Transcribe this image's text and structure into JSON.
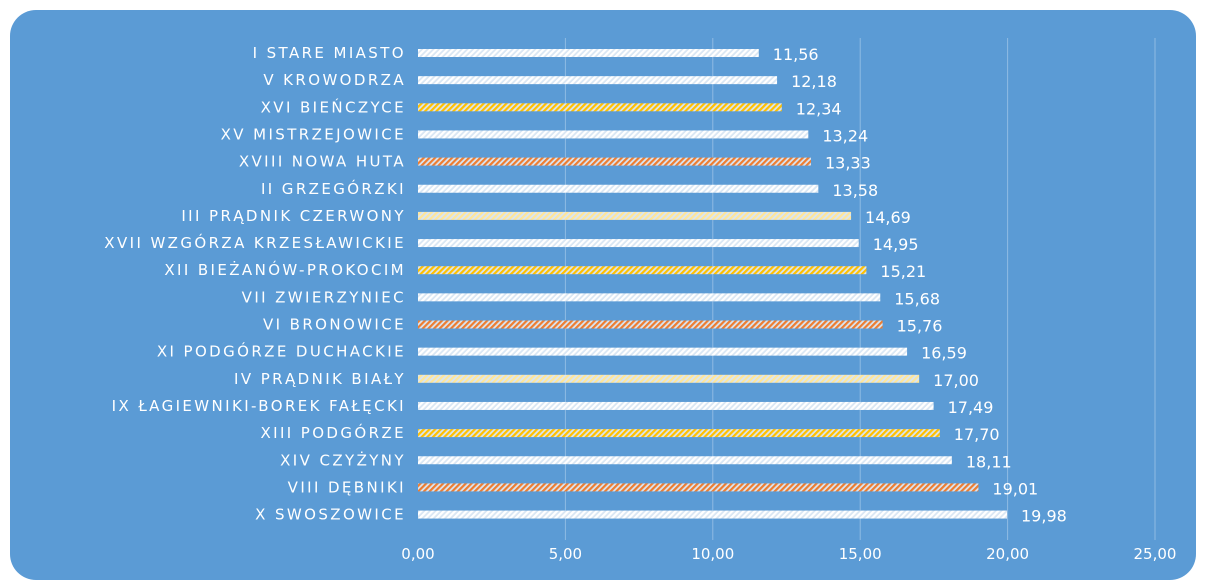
{
  "chart_data": {
    "type": "bar",
    "orientation": "horizontal",
    "categories": [
      "I STARE MIASTO",
      "V KROWODRZA",
      "XVI BIEŃCZYCE",
      "XV MISTRZEJOWICE",
      "XVIII NOWA HUTA",
      "II GRZEGÓRZKI",
      "III PRĄDNIK CZERWONY",
      "XVII WZGÓRZA KRZESŁAWICKIE",
      "XII BIEŻANÓW-PROKOCIM",
      "VII ZWIERZYNIEC",
      "VI BRONOWICE",
      "XI PODGÓRZE DUCHACKIE",
      "IV PRĄDNIK BIAŁY",
      "IX ŁAGIEWNIKI-BOREK FAŁĘCKI",
      "XIII PODGÓRZE",
      "XIV CZYŻYNY",
      "VIII DĘBNIKI",
      "X SWOSZOWICE"
    ],
    "values": [
      11.56,
      12.18,
      12.34,
      13.24,
      13.33,
      13.58,
      14.69,
      14.95,
      15.21,
      15.68,
      15.76,
      16.59,
      17.0,
      17.49,
      17.7,
      18.11,
      19.01,
      19.98
    ],
    "value_labels": [
      "11,56",
      "12,18",
      "12,34",
      "13,24",
      "13,33",
      "13,58",
      "14,69",
      "14,95",
      "15,21",
      "15,68",
      "15,76",
      "16,59",
      "17,00",
      "17,49",
      "17,70",
      "18,11",
      "19,01",
      "19,98"
    ],
    "bar_colors": [
      "#ffffff",
      "#ffffff",
      "#ffc000",
      "#ffffff",
      "#ed7d31",
      "#ffffff",
      "#ffe699",
      "#ffffff",
      "#ffc000",
      "#ffffff",
      "#ed7d31",
      "#ffffff",
      "#ffe699",
      "#ffffff",
      "#ffc000",
      "#ffffff",
      "#ed7d31",
      "#ffffff"
    ],
    "x_ticks": [
      0,
      5,
      10,
      15,
      20,
      25
    ],
    "x_tick_labels": [
      "0,00",
      "5,00",
      "10,00",
      "15,00",
      "20,00",
      "25,00"
    ],
    "xlim": [
      0,
      25
    ],
    "grid": true,
    "legend": "none",
    "background_color": "#5b9bd5",
    "bar_pattern": "diagonal-hatch"
  }
}
